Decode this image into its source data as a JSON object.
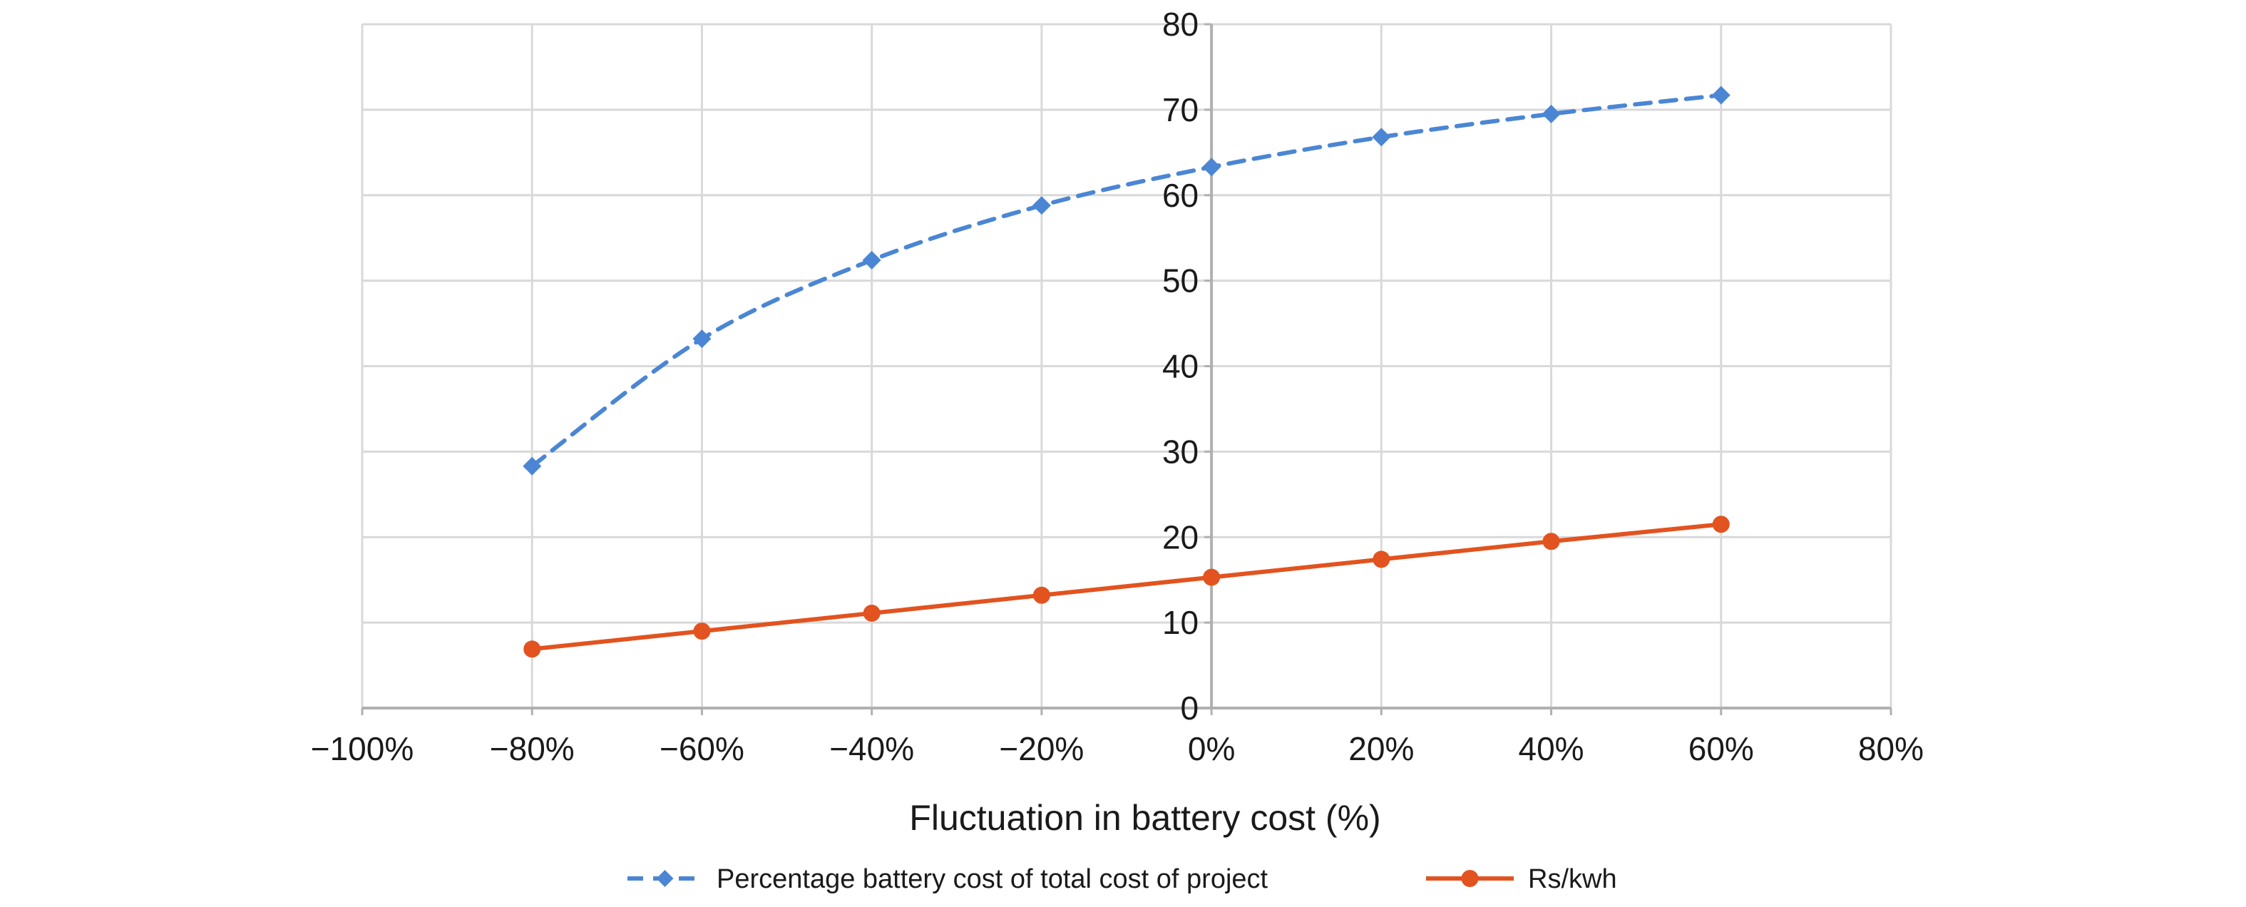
{
  "chart_data": {
    "type": "line",
    "title": "",
    "xlabel": "Fluctuation in battery cost (%)",
    "ylabel": "",
    "x_ticks": [
      "−100%",
      "−80%",
      "−60%",
      "−40%",
      "−20%",
      "0%",
      "20%",
      "40%",
      "60%",
      "80%"
    ],
    "y_ticks": [
      "0",
      "10",
      "20",
      "30",
      "40",
      "50",
      "60",
      "70",
      "80"
    ],
    "xlim": [
      -100,
      80
    ],
    "ylim": [
      0,
      80
    ],
    "grid": true,
    "legend_position": "bottom",
    "series": [
      {
        "name": "Percentage battery cost of total cost of project",
        "color": "#4a86d4",
        "line_style": "dashed",
        "marker": "diamond",
        "x": [
          -80,
          -60,
          -40,
          -20,
          0,
          20,
          40,
          60
        ],
        "y": [
          28.3,
          43.2,
          52.4,
          58.8,
          63.3,
          66.8,
          69.5,
          71.7
        ]
      },
      {
        "name": "Rs/kwh",
        "color": "#e2531f",
        "line_style": "solid",
        "marker": "circle",
        "x": [
          -80,
          -60,
          -40,
          -20,
          0,
          20,
          40,
          60
        ],
        "y": [
          6.9,
          9.0,
          11.1,
          13.2,
          15.3,
          17.4,
          19.5,
          21.5
        ]
      }
    ]
  }
}
